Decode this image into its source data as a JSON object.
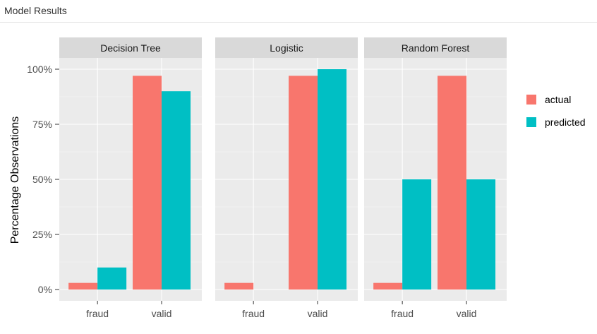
{
  "header": {
    "title": "Model Results"
  },
  "chart_data": {
    "type": "bar",
    "layout": "faceted",
    "ylabel": "Percentage Observations",
    "xlabel": "",
    "ylim": [
      0,
      1.07
    ],
    "yticks": [
      0,
      0.25,
      0.5,
      0.75,
      1.0
    ],
    "ytick_labels": [
      "0%",
      "25%",
      "50%",
      "75%",
      "100%"
    ],
    "categories": [
      "fraud",
      "valid"
    ],
    "legend": {
      "placement": "right",
      "entries": [
        {
          "name": "actual",
          "color": "#F8766D"
        },
        {
          "name": "predicted",
          "color": "#00BFC4"
        }
      ]
    },
    "facets": [
      {
        "title": "Decision Tree",
        "series": [
          {
            "name": "actual",
            "values": [
              0.03,
              0.97
            ]
          },
          {
            "name": "predicted",
            "values": [
              0.1,
              0.9
            ]
          }
        ]
      },
      {
        "title": "Logistic",
        "series": [
          {
            "name": "actual",
            "values": [
              0.03,
              0.97
            ]
          },
          {
            "name": "predicted",
            "values": [
              0.0,
              1.0
            ]
          }
        ]
      },
      {
        "title": "Random Forest",
        "series": [
          {
            "name": "actual",
            "values": [
              0.03,
              0.97
            ]
          },
          {
            "name": "predicted",
            "values": [
              0.5,
              0.5
            ]
          }
        ]
      }
    ]
  },
  "colors": {
    "panel_bg": "#EBEBEB",
    "strip_bg": "#D9D9D9",
    "grid_major": "#FFFFFF",
    "grid_minor": "#F5F5F5",
    "actual": "#F8766D",
    "predicted": "#00BFC4"
  }
}
